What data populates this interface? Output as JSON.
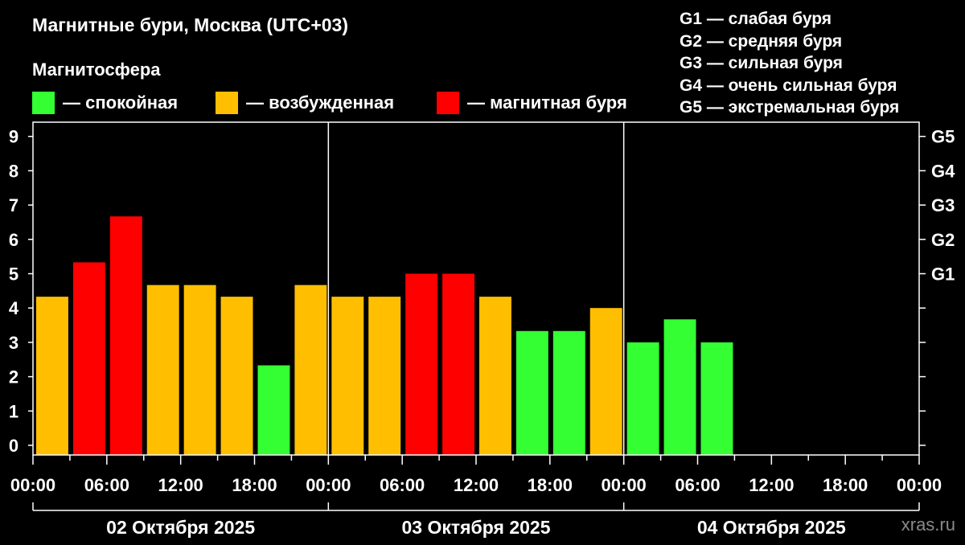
{
  "legend": {
    "quiet": {
      "label": "— спокойная",
      "color": "#33ff33"
    },
    "excited": {
      "label": "— возбужденная",
      "color": "#ffbf00"
    },
    "storm": {
      "label": "— магнитная буря",
      "color": "#ff0000"
    }
  },
  "g_levels": [
    "G1 — слабая буря",
    "G2 — средняя буря",
    "G3 — сильная буря",
    "G4 — очень сильная буря",
    "G5 — экстремальная буря"
  ],
  "watermark": "xras.ru",
  "chart_data": {
    "type": "bar",
    "title": "Магнитные бури, Москва (UTC+03)",
    "subtitle": "Магнитосфера",
    "ylim": [
      0,
      9
    ],
    "y_ticks": [
      "0",
      "1",
      "2",
      "3",
      "4",
      "5",
      "6",
      "7",
      "8",
      "9"
    ],
    "right_ticks": [
      {
        "value": 5,
        "label": "G1"
      },
      {
        "value": 6,
        "label": "G2"
      },
      {
        "value": 7,
        "label": "G3"
      },
      {
        "value": 8,
        "label": "G4"
      },
      {
        "value": 9,
        "label": "G5"
      }
    ],
    "x_tick_labels": [
      "00:00",
      "06:00",
      "12:00",
      "18:00",
      "00:00",
      "06:00",
      "12:00",
      "18:00",
      "00:00",
      "06:00",
      "12:00",
      "18:00",
      "00:00"
    ],
    "days": [
      "02 Октября 2025",
      "03 Октября 2025",
      "04 Октября 2025"
    ],
    "bar_hours": 3,
    "values": [
      4.33,
      5.33,
      6.67,
      4.67,
      4.67,
      4.33,
      2.33,
      4.67,
      4.33,
      4.33,
      5.0,
      5.0,
      4.33,
      3.33,
      3.33,
      4.0,
      3.0,
      3.67,
      3.0
    ],
    "levels": [
      "excited",
      "storm",
      "storm",
      "excited",
      "excited",
      "excited",
      "quiet",
      "excited",
      "excited",
      "excited",
      "storm",
      "storm",
      "excited",
      "quiet",
      "quiet",
      "excited",
      "quiet",
      "quiet",
      "quiet"
    ]
  }
}
